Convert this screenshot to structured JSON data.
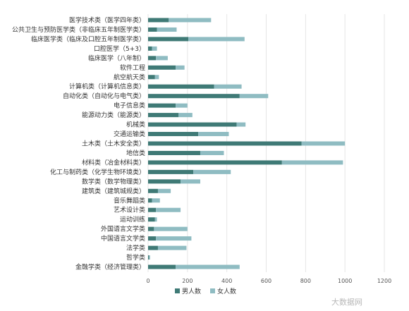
{
  "chart_data": {
    "type": "bar",
    "orientation": "horizontal",
    "stacked": true,
    "categories": [
      "医学技术类（医学四年类）",
      "公共卫生与预防医学类（非临床五年制医学类）",
      "临床医学类（临床及口腔五年制医学类）",
      "口腔医学（5+3）",
      "临床医学（八年制）",
      "软件工程",
      "航空航天类",
      "计算机类（计算机信息类）",
      "自动化类（自动化与电气类）",
      "电子信息类",
      "能源动力类（能源类）",
      "机械类",
      "交通运输类",
      "土木类（土木安全类）",
      "地信类",
      "材料类（冶金材料类）",
      "化工与制药类（化学生物环境类）",
      "数学类（数学物理类）",
      "建筑类（建筑城规类）",
      "音乐舞蹈类",
      "艺术设计类",
      "运动训练",
      "外国语言文学类",
      "中国语言文学类",
      "法学类",
      "哲学类",
      "金融学类（经济管理类）"
    ],
    "series": [
      {
        "name": "男人数",
        "color": "#3f7a76",
        "values": [
          105,
          45,
          205,
          20,
          40,
          140,
          35,
          335,
          465,
          140,
          155,
          450,
          255,
          780,
          265,
          680,
          230,
          165,
          50,
          20,
          40,
          35,
          30,
          40,
          50,
          5,
          140
        ]
      },
      {
        "name": "女人数",
        "color": "#8fbcc2",
        "values": [
          215,
          100,
          285,
          25,
          60,
          45,
          20,
          140,
          145,
          60,
          70,
          45,
          155,
          220,
          120,
          310,
          190,
          100,
          65,
          40,
          125,
          10,
          170,
          180,
          145,
          5,
          325
        ]
      }
    ],
    "x_ticks": [
      "0",
      "200",
      "400",
      "600",
      "800",
      "1000",
      "1200"
    ],
    "xlim": [
      0,
      1200
    ],
    "grid": true,
    "legend_position": "bottom"
  },
  "watermark": "大数据网"
}
